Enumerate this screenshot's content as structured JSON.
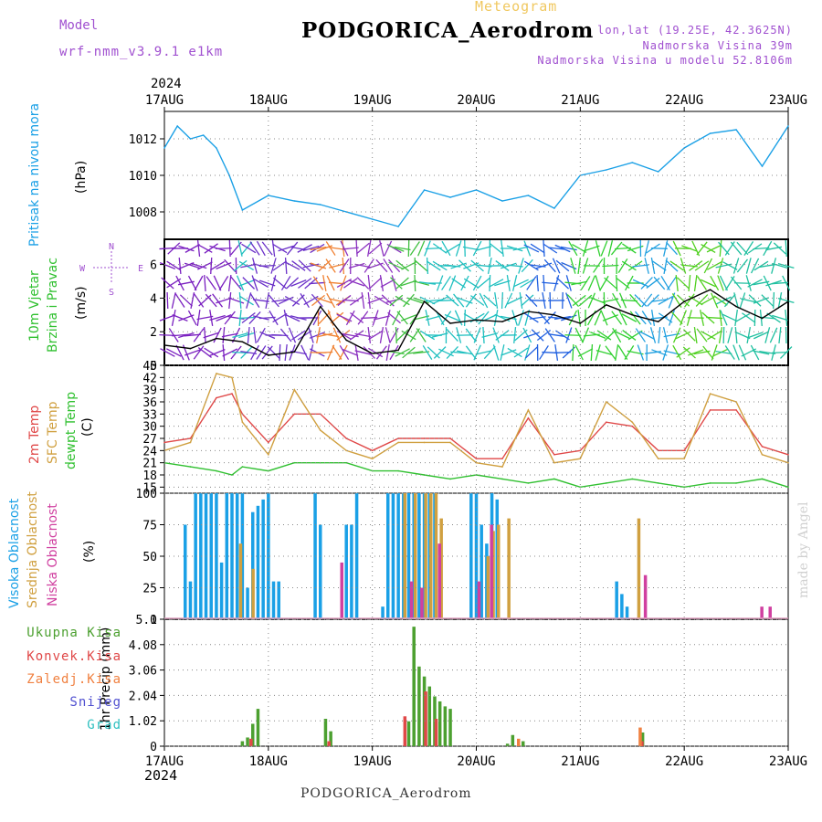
{
  "header": {
    "meteogram": "Meteogram",
    "station": "PODGORICA_Aerodrom",
    "model_label": "Model",
    "model_name": "wrf-nmm_v3.9.1 e1km",
    "lonlat": "lon,lat (19.25E, 42.3625N)",
    "elevation": "Nadmorska Visina 39m",
    "model_elevation": "Nadmorska Visina u modelu 52.8106m",
    "year": "2024",
    "bottom_station": "PODGORICA_Aerodrom",
    "watermark": "made by Angel"
  },
  "chart_data": [
    {
      "type": "line",
      "panel": "pressure",
      "ylabel": [
        "Pritisak na nivou mora",
        "(hPa)"
      ],
      "ylim": [
        1006.5,
        1013.5
      ],
      "yticks": [
        1008,
        1010,
        1012
      ],
      "x": [
        0,
        0.125,
        0.25,
        0.375,
        0.5,
        0.625,
        0.75,
        1,
        1.25,
        1.5,
        1.75,
        2,
        2.25,
        2.5,
        2.75,
        3,
        3.25,
        3.5,
        3.75,
        4,
        4.25,
        4.5,
        4.75,
        5,
        5.25,
        5.5,
        5.75,
        6
      ],
      "values": [
        1011.5,
        1012.7,
        1012.0,
        1012.2,
        1011.5,
        1010.0,
        1008.1,
        1008.9,
        1008.6,
        1008.4,
        1008.0,
        1007.6,
        1007.2,
        1009.2,
        1008.8,
        1009.2,
        1008.6,
        1008.9,
        1008.2,
        1010.0,
        1010.3,
        1010.7,
        1010.2,
        1011.5,
        1012.3,
        1012.5,
        1010.5,
        1012.7
      ],
      "color": "#1aa0e6"
    },
    {
      "type": "line",
      "panel": "wind",
      "ylabel": [
        "10m Vjetar",
        "Brzina i Pravac",
        "(m/s)"
      ],
      "ylim": [
        0,
        7.5
      ],
      "yticks": [
        0,
        2,
        4,
        6
      ],
      "compass": [
        "N",
        "W",
        "E",
        "S"
      ],
      "x": [
        0,
        0.25,
        0.5,
        0.75,
        1,
        1.25,
        1.5,
        1.75,
        2,
        2.25,
        2.5,
        2.75,
        3,
        3.25,
        3.5,
        3.75,
        4,
        4.25,
        4.5,
        4.75,
        5,
        5.25,
        5.5,
        5.75,
        6
      ],
      "values": [
        1.2,
        1.0,
        1.6,
        1.4,
        0.6,
        0.8,
        3.5,
        1.5,
        0.7,
        0.9,
        3.8,
        2.5,
        2.7,
        2.6,
        3.2,
        3.0,
        2.5,
        3.6,
        3.0,
        2.6,
        3.8,
        4.5,
        3.5,
        2.8,
        3.8
      ],
      "color": "#000000"
    },
    {
      "type": "line",
      "panel": "temperature",
      "ylabel": [
        "2m Temp",
        "SFC Temp",
        "dewpt Temp",
        "(C)"
      ],
      "ylim": [
        13.5,
        45
      ],
      "yticks": [
        15,
        18,
        21,
        24,
        27,
        30,
        33,
        36,
        39,
        42,
        45
      ],
      "x": [
        0,
        0.25,
        0.5,
        0.65,
        0.75,
        1,
        1.25,
        1.5,
        1.75,
        2,
        2.25,
        2.5,
        2.75,
        3,
        3.25,
        3.5,
        3.75,
        4,
        4.25,
        4.5,
        4.75,
        5,
        5.25,
        5.5,
        5.75,
        6
      ],
      "series": [
        {
          "name": "2m Temp",
          "color": "#e04848",
          "values": [
            26,
            27,
            37,
            38,
            33,
            26,
            33,
            33,
            27,
            24,
            27,
            27,
            27,
            22,
            22,
            32,
            23,
            24,
            31,
            30,
            24,
            24,
            34,
            34,
            25,
            23
          ]
        },
        {
          "name": "SFC Temp",
          "color": "#d0a040",
          "values": [
            24,
            26,
            43,
            42,
            31,
            23,
            39,
            29,
            24,
            22,
            26,
            26,
            26,
            21,
            20,
            34,
            21,
            22,
            36,
            31,
            22,
            22,
            38,
            36,
            23,
            21
          ]
        },
        {
          "name": "dewpt Temp",
          "color": "#30c030",
          "values": [
            21,
            20,
            19,
            18,
            20,
            19,
            21,
            21,
            21,
            19,
            19,
            18,
            17,
            18,
            17,
            16,
            17,
            15,
            16,
            17,
            16,
            15,
            16,
            16,
            17,
            15
          ]
        }
      ]
    },
    {
      "type": "bar",
      "panel": "cloud",
      "ylabel": [
        "Visoka Oblacnost",
        "Srednja Oblacnost",
        "Niska Oblacnost",
        "(%)"
      ],
      "ylim": [
        0,
        100
      ],
      "yticks": [
        0,
        25,
        50,
        75,
        100
      ],
      "series": [
        {
          "name": "Visoka Oblacnost",
          "color": "#1aa0e6",
          "x": [
            0.2,
            0.25,
            0.3,
            0.35,
            0.4,
            0.45,
            0.5,
            0.55,
            0.6,
            0.65,
            0.7,
            0.75,
            0.8,
            0.85,
            0.9,
            0.95,
            1.0,
            1.05,
            1.1,
            1.45,
            1.5,
            1.75,
            1.8,
            1.85,
            2.1,
            2.15,
            2.2,
            2.25,
            2.3,
            2.35,
            2.4,
            2.45,
            2.5,
            2.55,
            2.6,
            2.95,
            3.0,
            3.05,
            3.1,
            3.15,
            3.2,
            4.35,
            4.4,
            4.45
          ],
          "values": [
            75,
            30,
            100,
            100,
            100,
            100,
            100,
            45,
            100,
            100,
            100,
            100,
            25,
            85,
            90,
            95,
            100,
            30,
            30,
            100,
            75,
            75,
            75,
            100,
            10,
            100,
            100,
            100,
            100,
            100,
            100,
            100,
            100,
            100,
            100,
            100,
            100,
            75,
            60,
            100,
            95,
            30,
            20,
            10
          ]
        },
        {
          "name": "Srednja Oblacnost",
          "color": "#d0a040",
          "x": [
            0.72,
            0.84,
            2.3,
            2.4,
            2.5,
            2.55,
            2.6,
            2.65,
            3.1,
            3.15,
            3.2,
            3.3,
            4.55
          ],
          "values": [
            60,
            40,
            100,
            100,
            100,
            100,
            100,
            80,
            50,
            70,
            75,
            80,
            80
          ]
        },
        {
          "name": "Niska Oblacnost",
          "color": "#d040a0",
          "x": [
            1.68,
            2.35,
            2.45,
            2.62,
            3.0,
            3.12,
            4.6,
            5.72,
            5.8
          ],
          "values": [
            45,
            30,
            25,
            60,
            30,
            75,
            35,
            10,
            10
          ]
        }
      ]
    },
    {
      "type": "bar",
      "panel": "precip",
      "ylabel": [
        "1hr Precip (mm)"
      ],
      "ylim": [
        0,
        5.1
      ],
      "yticks": [
        0,
        1.02,
        2.04,
        3.06,
        4.08,
        5.1
      ],
      "series": [
        {
          "name": "Ukupna Kisa",
          "color": "#4ca030",
          "x": [
            0.75,
            0.8,
            0.85,
            0.9,
            1.55,
            1.6,
            2.35,
            2.4,
            2.45,
            2.5,
            2.55,
            2.6,
            2.65,
            2.7,
            2.75,
            3.3,
            3.35,
            3.45,
            4.6
          ],
          "values": [
            0.2,
            0.35,
            0.9,
            1.5,
            1.1,
            0.6,
            1.0,
            4.8,
            3.2,
            2.8,
            2.4,
            2.0,
            1.8,
            1.6,
            1.5,
            0.1,
            0.45,
            0.2,
            0.55
          ]
        },
        {
          "name": "Konvek.Kisa",
          "color": "#e04848",
          "x": [
            0.82,
            1.57,
            2.3,
            2.5,
            2.6,
            4.58
          ],
          "values": [
            0.3,
            0.2,
            1.2,
            2.2,
            1.1,
            0.2
          ]
        },
        {
          "name": "Zaledj.Kisa",
          "color": "#f08040",
          "x": [
            3.38,
            4.55
          ],
          "values": [
            0.3,
            0.75
          ]
        },
        {
          "name": "Snijeg",
          "color": "#5050d0",
          "x": [],
          "values": []
        },
        {
          "name": "Grad",
          "color": "#30c0c0",
          "x": [],
          "values": []
        }
      ]
    }
  ],
  "x_axis": {
    "labels": [
      "17AUG",
      "18AUG",
      "19AUG",
      "20AUG",
      "21AUG",
      "22AUG",
      "23AUG"
    ],
    "positions": [
      0,
      1,
      2,
      3,
      4,
      5,
      6
    ]
  }
}
